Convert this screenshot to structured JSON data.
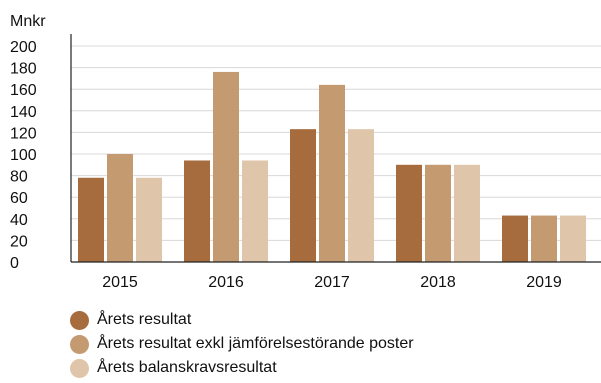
{
  "chart_data": {
    "type": "bar",
    "ylabel": "Mnkr",
    "ylim": [
      0,
      200
    ],
    "yticks": [
      0,
      20,
      40,
      60,
      80,
      100,
      120,
      140,
      160,
      180,
      200
    ],
    "categories": [
      "2015",
      "2016",
      "2017",
      "2018",
      "2019"
    ],
    "grid": true,
    "legend_position": "bottom-left",
    "series": [
      {
        "name": "Årets resultat",
        "color": "#a66c3e",
        "values": [
          78,
          94,
          123,
          90,
          43
        ]
      },
      {
        "name": "Årets resultat exkl jämförelsestörande poster",
        "color": "#c49a71",
        "values": [
          100,
          176,
          164,
          90,
          43
        ]
      },
      {
        "name": "Årets balanskravsresultat",
        "color": "#dfc5a9",
        "values": [
          78,
          94,
          123,
          90,
          43
        ]
      }
    ]
  }
}
